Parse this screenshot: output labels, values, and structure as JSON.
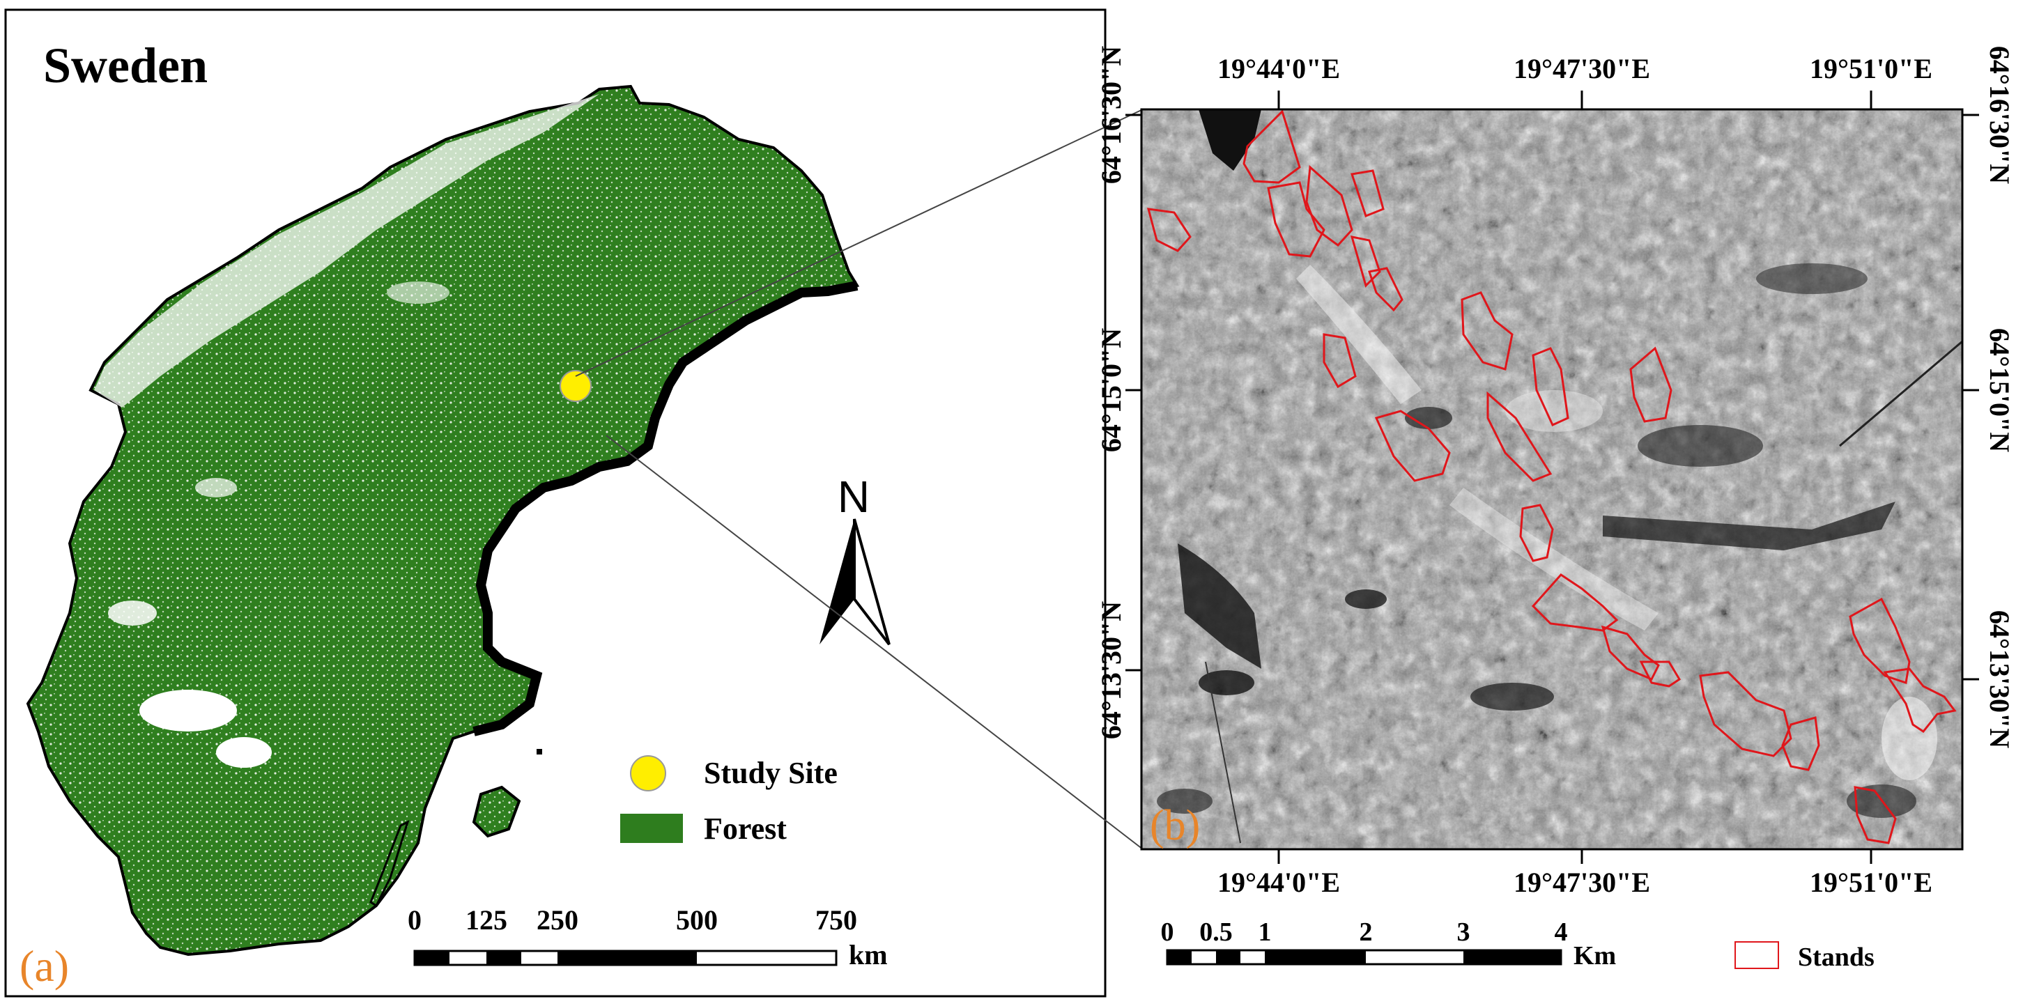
{
  "panel_a": {
    "title": "Sweden",
    "panel_label": "(a)",
    "north_label": "N",
    "legend": {
      "study_site": "Study Site",
      "forest": "Forest"
    },
    "scale_bar": {
      "ticks": [
        "0",
        "125",
        "250",
        "500",
        "750"
      ],
      "unit": "km"
    }
  },
  "panel_b": {
    "panel_label": "(b)",
    "top_lon_labels": [
      "19°44'0\"E",
      "19°47'30\"E",
      "19°51'0\"E"
    ],
    "bottom_lon_labels": [
      "19°44'0\"E",
      "19°47'30\"E",
      "19°51'0\"E"
    ],
    "left_lat_labels": [
      "64°16'30\"N",
      "64°15'0\"N",
      "64°13'30\"N"
    ],
    "right_lat_labels": [
      "64°16'30\"N",
      "64°15'0\"N",
      "64°13'30\"N"
    ],
    "scale_bar": {
      "ticks": [
        "0",
        "0.5",
        "1",
        "2",
        "3",
        "4"
      ],
      "unit": "Km"
    },
    "legend": {
      "stands": "Stands"
    }
  },
  "colors": {
    "forest": "#2e7d1e",
    "study_site": "#ffee00",
    "stand_outline": "#e0161b",
    "panel_label": "#e8852a",
    "frame": "#000000"
  }
}
